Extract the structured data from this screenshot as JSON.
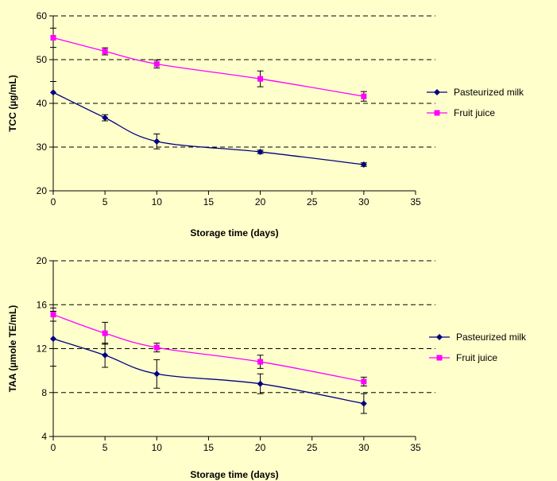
{
  "chart_data": [
    {
      "type": "line",
      "xlabel": "Storage time (days)",
      "ylabel": "TCC (µg/mL)",
      "xlim": [
        0,
        35
      ],
      "ylim": [
        20,
        60
      ],
      "xticks": [
        0,
        5,
        10,
        15,
        20,
        25,
        30,
        35
      ],
      "yticks": [
        20,
        30,
        40,
        50,
        60
      ],
      "grid": "horizontal dashed",
      "legend_position": "right",
      "series": [
        {
          "name": "Pasteurized milk",
          "color": "#000080",
          "marker": "diamond",
          "x": [
            0,
            5,
            10,
            20,
            30
          ],
          "y": [
            42.5,
            36.7,
            31.3,
            28.9,
            26.0
          ],
          "err": [
            2.5,
            0.7,
            1.7,
            0.4,
            0.4
          ]
        },
        {
          "name": "Fruit juice",
          "color": "#FF00FF",
          "marker": "square",
          "x": [
            0,
            5,
            10,
            20,
            30
          ],
          "y": [
            55.0,
            51.9,
            49.0,
            45.6,
            41.6
          ],
          "err": [
            2.2,
            0.8,
            0.9,
            1.8,
            1.1
          ]
        }
      ]
    },
    {
      "type": "line",
      "xlabel": "Storage time (days)",
      "ylabel": "TAA (µmole TE/mL)",
      "xlim": [
        0,
        35
      ],
      "ylim": [
        4,
        20
      ],
      "xticks": [
        0,
        5,
        10,
        15,
        20,
        25,
        30,
        35
      ],
      "yticks": [
        4,
        8,
        12,
        16,
        20
      ],
      "grid": "horizontal dashed",
      "legend_position": "right",
      "series": [
        {
          "name": "Pasteurized milk",
          "color": "#000080",
          "marker": "diamond",
          "x": [
            0,
            5,
            10,
            20,
            30
          ],
          "y": [
            12.9,
            11.4,
            9.7,
            8.8,
            7.0
          ],
          "err": [
            2.5,
            1.1,
            1.3,
            0.9,
            0.9
          ]
        },
        {
          "name": "Fruit juice",
          "color": "#FF00FF",
          "marker": "square",
          "x": [
            0,
            5,
            10,
            20,
            30
          ],
          "y": [
            15.1,
            13.4,
            12.1,
            10.8,
            9.0
          ],
          "err": [
            0.6,
            1.0,
            0.4,
            0.6,
            0.4
          ]
        }
      ]
    }
  ]
}
